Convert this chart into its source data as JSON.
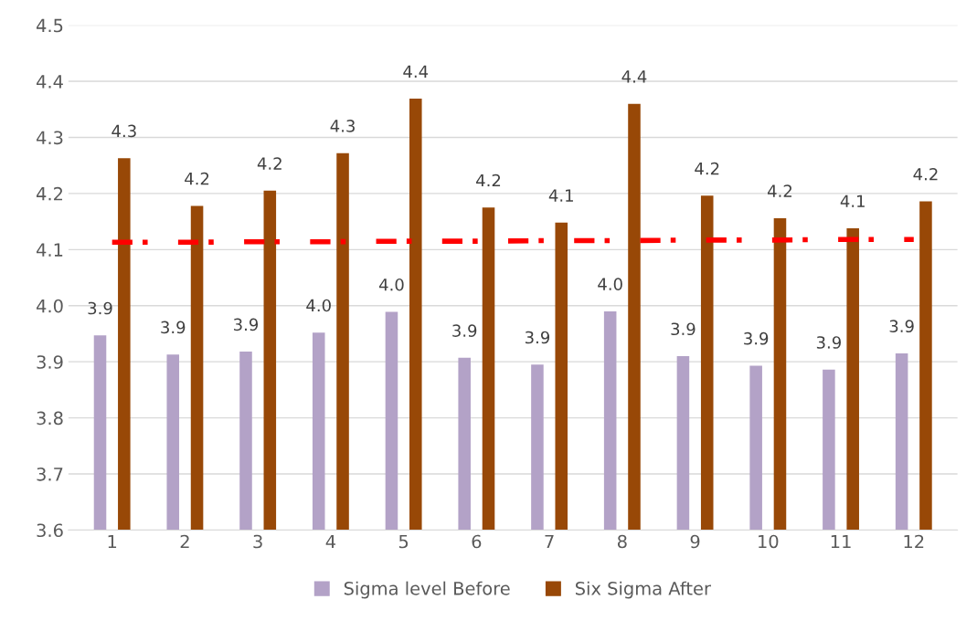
{
  "chart_data": {
    "type": "bar",
    "categories": [
      "1",
      "2",
      "3",
      "4",
      "5",
      "6",
      "7",
      "8",
      "9",
      "10",
      "11",
      "12"
    ],
    "series": [
      {
        "name": "Sigma level Before",
        "color": "#b3a2c7",
        "values": [
          3.947,
          3.913,
          3.918,
          3.952,
          3.989,
          3.907,
          3.895,
          3.99,
          3.91,
          3.893,
          3.886,
          3.915
        ],
        "value_labels": [
          "3.9",
          "3.9",
          "3.9",
          "4.0",
          "4.0",
          "3.9",
          "3.9",
          "4.0",
          "3.9",
          "3.9",
          "3.9",
          "3.9"
        ]
      },
      {
        "name": "Six Sigma After",
        "color": "#984807",
        "values": [
          4.263,
          4.178,
          4.205,
          4.272,
          4.369,
          4.175,
          4.148,
          4.36,
          4.196,
          4.156,
          4.138,
          4.186
        ],
        "value_labels": [
          "4.3",
          "4.2",
          "4.2",
          "4.3",
          "4.4",
          "4.2",
          "4.1",
          "4.4",
          "4.2",
          "4.2",
          "4.1",
          "4.2"
        ]
      },
      {
        "type": "line",
        "color": "#ff0000",
        "line_style": "dashed",
        "marker": "none",
        "values": [
          4.113,
          4.113,
          4.114,
          4.114,
          4.115,
          4.115,
          4.116,
          4.116,
          4.117,
          4.117,
          4.118,
          4.118
        ]
      }
    ],
    "ylim": [
      3.6,
      4.5
    ],
    "yticks": [
      3.6,
      3.7,
      3.8,
      3.9,
      {
        "value": 4.0,
        "label": "4.0"
      },
      4.1,
      4.2,
      4.3,
      4.4,
      4.5
    ],
    "grid": "y",
    "legend": "bottom"
  }
}
